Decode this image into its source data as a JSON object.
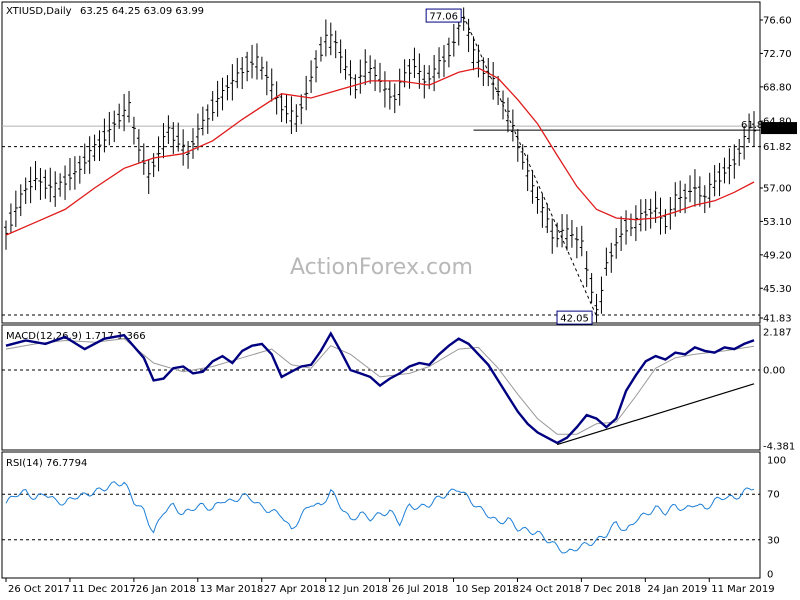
{
  "chart_data": {
    "type": "candlestick",
    "symbol_title": "XTIUSD,Daily",
    "ohlc_text": "63.25 64.25 63.09 63.99",
    "watermark": "ActionForex.com",
    "colors": {
      "price": "#000000",
      "sma": "#e01b1b",
      "macd": "#000080",
      "signal": "#9a9a9a",
      "rsi": "#1e7fd6",
      "trendline": "#000000",
      "current_price_box": "#000000",
      "grid_dashed": "#000000"
    },
    "x_axis_labels": [
      "26 Oct 2017",
      "11 Dec 2017",
      "26 Jan 2018",
      "13 Mar 2018",
      "27 Apr 2018",
      "12 Jun 2018",
      "26 Jul 2018",
      "10 Sep 2018",
      "24 Oct 2018",
      "7 Dec 2018",
      "24 Jan 2019",
      "11 Mar 2019"
    ],
    "price_panel": {
      "y_ticks": [
        "76.60",
        "72.70",
        "68.80",
        "64.80",
        "61.82",
        "57.00",
        "53.10",
        "49.20",
        "45.30",
        "41.83"
      ],
      "ylim": [
        41.83,
        76.6
      ],
      "current_price": "63.99",
      "level_618": "61.82",
      "retracement_label": "61.8",
      "high_label": "77.06",
      "low_label": "42.05",
      "high_value": 77.06,
      "low_value": 42.05,
      "price_path": [
        [
          0,
          52.0
        ],
        [
          2,
          54.5
        ],
        [
          4,
          56.8
        ],
        [
          6,
          58.0
        ],
        [
          8,
          57.5
        ],
        [
          10,
          56.9
        ],
        [
          12,
          57.8
        ],
        [
          14,
          58.8
        ],
        [
          16,
          60.2
        ],
        [
          18,
          61.5
        ],
        [
          20,
          63.0
        ],
        [
          22,
          64.5
        ],
        [
          24,
          65.8
        ],
        [
          25,
          66.3
        ],
        [
          26,
          64.0
        ],
        [
          27,
          62.0
        ],
        [
          28,
          60.0
        ],
        [
          29,
          58.5
        ],
        [
          31,
          61.0
        ],
        [
          33,
          63.8
        ],
        [
          35,
          62.5
        ],
        [
          37,
          61.0
        ],
        [
          39,
          63.5
        ],
        [
          41,
          65.5
        ],
        [
          43,
          67.3
        ],
        [
          45,
          68.8
        ],
        [
          47,
          70.0
        ],
        [
          49,
          71.3
        ],
        [
          51,
          71.8
        ],
        [
          53,
          70.0
        ],
        [
          55,
          67.5
        ],
        [
          57,
          66.0
        ],
        [
          59,
          65.0
        ],
        [
          61,
          68.0
        ],
        [
          63,
          71.5
        ],
        [
          65,
          74.5
        ],
        [
          67,
          74.0
        ],
        [
          69,
          71.0
        ],
        [
          71,
          69.0
        ],
        [
          73,
          71.0
        ],
        [
          75,
          70.5
        ],
        [
          77,
          68.5
        ],
        [
          79,
          67.5
        ],
        [
          81,
          70.0
        ],
        [
          83,
          71.5
        ],
        [
          85,
          69.5
        ],
        [
          87,
          70.5
        ],
        [
          89,
          72.0
        ],
        [
          91,
          74.0
        ],
        [
          92,
          75.8
        ],
        [
          93,
          76.6
        ],
        [
          94,
          75.0
        ],
        [
          95,
          72.5
        ],
        [
          97,
          71.0
        ],
        [
          99,
          69.5
        ],
        [
          101,
          67.0
        ],
        [
          103,
          64.0
        ],
        [
          105,
          60.5
        ],
        [
          107,
          57.0
        ],
        [
          109,
          54.5
        ],
        [
          111,
          51.5
        ],
        [
          113,
          52.0
        ],
        [
          115,
          51.5
        ],
        [
          117,
          50.5
        ],
        [
          118,
          47.5
        ],
        [
          119,
          45.5
        ],
        [
          120,
          43.0
        ],
        [
          121,
          44.5
        ],
        [
          122,
          48.0
        ],
        [
          124,
          50.5
        ],
        [
          126,
          52.5
        ],
        [
          128,
          53.0
        ],
        [
          130,
          54.0
        ],
        [
          132,
          54.5
        ],
        [
          134,
          53.0
        ],
        [
          136,
          55.5
        ],
        [
          138,
          56.2
        ],
        [
          140,
          57.0
        ],
        [
          142,
          56.0
        ],
        [
          144,
          57.5
        ],
        [
          146,
          59.0
        ],
        [
          148,
          60.0
        ],
        [
          150,
          62.5
        ],
        [
          151,
          63.5
        ],
        [
          152,
          63.99
        ]
      ],
      "sma_path": [
        [
          0,
          51.5
        ],
        [
          6,
          53.0
        ],
        [
          12,
          54.5
        ],
        [
          18,
          57.0
        ],
        [
          24,
          59.3
        ],
        [
          30,
          60.5
        ],
        [
          36,
          61.0
        ],
        [
          42,
          62.5
        ],
        [
          48,
          65.0
        ],
        [
          56,
          68.0
        ],
        [
          62,
          67.5
        ],
        [
          68,
          68.5
        ],
        [
          74,
          69.5
        ],
        [
          80,
          69.5
        ],
        [
          86,
          69.0
        ],
        [
          92,
          70.5
        ],
        [
          96,
          71.0
        ],
        [
          100,
          69.8
        ],
        [
          104,
          67.3
        ],
        [
          108,
          64.5
        ],
        [
          112,
          60.8
        ],
        [
          116,
          57.2
        ],
        [
          120,
          54.5
        ],
        [
          124,
          53.5
        ],
        [
          128,
          53.3
        ],
        [
          132,
          53.5
        ],
        [
          136,
          54.2
        ],
        [
          140,
          55.0
        ],
        [
          144,
          55.5
        ],
        [
          148,
          56.5
        ],
        [
          152,
          57.7
        ]
      ]
    },
    "macd_panel": {
      "label": "MACD(12,26,9) 1.717 1.366",
      "y_ticks": [
        "2.187",
        "0.00",
        "-4.381"
      ],
      "ylim": [
        -4.381,
        2.187
      ],
      "macd_path": [
        [
          0,
          1.4
        ],
        [
          4,
          1.7
        ],
        [
          8,
          1.5
        ],
        [
          12,
          1.9
        ],
        [
          16,
          1.2
        ],
        [
          20,
          1.8
        ],
        [
          24,
          2.0
        ],
        [
          28,
          0.7
        ],
        [
          30,
          -0.6
        ],
        [
          32,
          -0.5
        ],
        [
          34,
          0.1
        ],
        [
          36,
          0.2
        ],
        [
          38,
          -0.2
        ],
        [
          40,
          -0.1
        ],
        [
          42,
          0.5
        ],
        [
          44,
          0.8
        ],
        [
          46,
          0.4
        ],
        [
          48,
          1.1
        ],
        [
          50,
          1.4
        ],
        [
          52,
          1.5
        ],
        [
          54,
          0.9
        ],
        [
          56,
          -0.4
        ],
        [
          58,
          -0.1
        ],
        [
          60,
          0.2
        ],
        [
          62,
          0.3
        ],
        [
          64,
          1.1
        ],
        [
          66,
          2.1
        ],
        [
          68,
          1.1
        ],
        [
          70,
          0.0
        ],
        [
          72,
          -0.2
        ],
        [
          74,
          -0.4
        ],
        [
          76,
          -0.9
        ],
        [
          78,
          -0.5
        ],
        [
          80,
          -0.2
        ],
        [
          82,
          0.2
        ],
        [
          84,
          0.4
        ],
        [
          86,
          0.3
        ],
        [
          88,
          0.9
        ],
        [
          90,
          1.4
        ],
        [
          92,
          1.8
        ],
        [
          94,
          1.5
        ],
        [
          96,
          0.9
        ],
        [
          98,
          0.3
        ],
        [
          100,
          -0.6
        ],
        [
          102,
          -1.5
        ],
        [
          104,
          -2.4
        ],
        [
          106,
          -3.1
        ],
        [
          108,
          -3.6
        ],
        [
          110,
          -3.9
        ],
        [
          112,
          -4.2
        ],
        [
          114,
          -3.9
        ],
        [
          116,
          -3.3
        ],
        [
          118,
          -2.6
        ],
        [
          120,
          -2.8
        ],
        [
          122,
          -3.3
        ],
        [
          124,
          -2.8
        ],
        [
          126,
          -1.2
        ],
        [
          128,
          -0.3
        ],
        [
          130,
          0.5
        ],
        [
          132,
          0.8
        ],
        [
          134,
          0.6
        ],
        [
          136,
          1.0
        ],
        [
          138,
          0.9
        ],
        [
          140,
          1.3
        ],
        [
          142,
          1.1
        ],
        [
          144,
          1.0
        ],
        [
          146,
          1.3
        ],
        [
          148,
          1.2
        ],
        [
          150,
          1.5
        ],
        [
          152,
          1.717
        ]
      ],
      "signal_path": [
        [
          0,
          1.2
        ],
        [
          6,
          1.5
        ],
        [
          12,
          1.7
        ],
        [
          18,
          1.6
        ],
        [
          24,
          1.8
        ],
        [
          30,
          0.4
        ],
        [
          36,
          -0.1
        ],
        [
          42,
          0.2
        ],
        [
          48,
          0.7
        ],
        [
          54,
          1.2
        ],
        [
          58,
          0.3
        ],
        [
          62,
          0.1
        ],
        [
          66,
          1.4
        ],
        [
          70,
          0.9
        ],
        [
          76,
          -0.4
        ],
        [
          82,
          -0.2
        ],
        [
          86,
          0.2
        ],
        [
          92,
          1.2
        ],
        [
          96,
          1.3
        ],
        [
          100,
          0.1
        ],
        [
          104,
          -1.4
        ],
        [
          108,
          -2.8
        ],
        [
          112,
          -3.7
        ],
        [
          116,
          -3.7
        ],
        [
          120,
          -3.1
        ],
        [
          124,
          -3.0
        ],
        [
          128,
          -1.5
        ],
        [
          132,
          0.1
        ],
        [
          136,
          0.7
        ],
        [
          140,
          0.9
        ],
        [
          146,
          1.1
        ],
        [
          152,
          1.366
        ]
      ],
      "trendline": [
        [
          112,
          -4.3
        ],
        [
          152,
          -0.8
        ]
      ]
    },
    "rsi_panel": {
      "label": "RSI(14) 76.7794",
      "y_ticks": [
        "100",
        "70",
        "30",
        "0"
      ],
      "ylim": [
        0,
        100
      ],
      "rsi_path": [
        [
          0,
          62
        ],
        [
          2,
          70
        ],
        [
          4,
          72
        ],
        [
          6,
          66
        ],
        [
          8,
          71
        ],
        [
          10,
          64
        ],
        [
          12,
          62
        ],
        [
          14,
          68
        ],
        [
          16,
          69
        ],
        [
          18,
          72
        ],
        [
          20,
          75
        ],
        [
          22,
          79
        ],
        [
          24,
          80
        ],
        [
          26,
          64
        ],
        [
          28,
          55
        ],
        [
          30,
          36
        ],
        [
          32,
          55
        ],
        [
          34,
          60
        ],
        [
          36,
          52
        ],
        [
          38,
          58
        ],
        [
          40,
          60
        ],
        [
          42,
          57
        ],
        [
          44,
          65
        ],
        [
          46,
          63
        ],
        [
          48,
          69
        ],
        [
          50,
          66
        ],
        [
          52,
          58
        ],
        [
          54,
          55
        ],
        [
          56,
          52
        ],
        [
          58,
          38
        ],
        [
          60,
          51
        ],
        [
          62,
          62
        ],
        [
          64,
          59
        ],
        [
          66,
          73
        ],
        [
          68,
          60
        ],
        [
          70,
          47
        ],
        [
          72,
          53
        ],
        [
          74,
          49
        ],
        [
          76,
          52
        ],
        [
          78,
          55
        ],
        [
          80,
          45
        ],
        [
          82,
          60
        ],
        [
          84,
          58
        ],
        [
          86,
          61
        ],
        [
          88,
          67
        ],
        [
          90,
          71
        ],
        [
          92,
          75
        ],
        [
          94,
          66
        ],
        [
          96,
          58
        ],
        [
          98,
          52
        ],
        [
          100,
          45
        ],
        [
          102,
          48
        ],
        [
          104,
          40
        ],
        [
          106,
          38
        ],
        [
          108,
          36
        ],
        [
          110,
          30
        ],
        [
          112,
          24
        ],
        [
          114,
          18
        ],
        [
          116,
          23
        ],
        [
          118,
          26
        ],
        [
          120,
          29
        ],
        [
          122,
          35
        ],
        [
          124,
          45
        ],
        [
          126,
          37
        ],
        [
          128,
          48
        ],
        [
          130,
          52
        ],
        [
          132,
          58
        ],
        [
          134,
          54
        ],
        [
          136,
          60
        ],
        [
          138,
          56
        ],
        [
          140,
          62
        ],
        [
          142,
          57
        ],
        [
          144,
          64
        ],
        [
          146,
          68
        ],
        [
          148,
          66
        ],
        [
          150,
          72
        ],
        [
          152,
          76.78
        ]
      ]
    }
  }
}
